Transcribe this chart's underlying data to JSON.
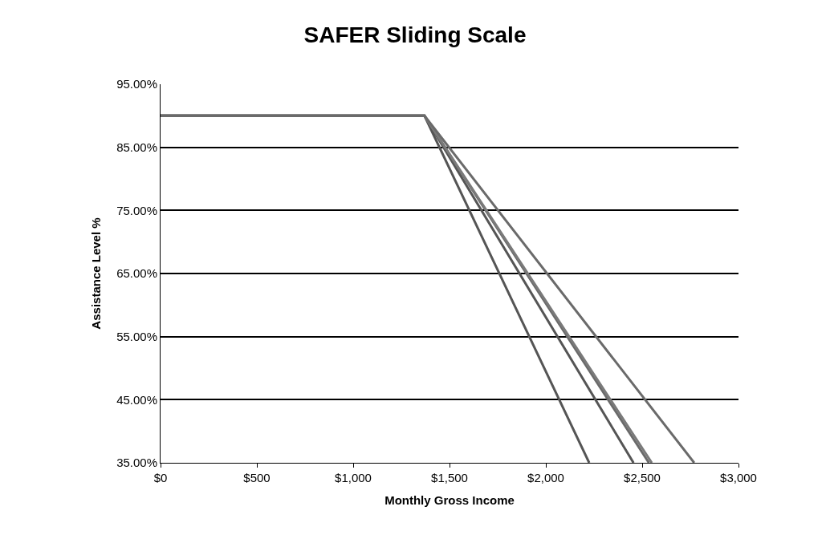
{
  "chart_data": {
    "type": "line",
    "title": "SAFER Sliding Scale",
    "xlabel": "Monthly Gross Income",
    "ylabel": "Assistance Level %",
    "xlim": [
      0,
      3000
    ],
    "xticks": [
      {
        "value": 0,
        "label": "$0"
      },
      {
        "value": 500,
        "label": "$500"
      },
      {
        "value": 1000,
        "label": "$1,000"
      },
      {
        "value": 1500,
        "label": "$1,500"
      },
      {
        "value": 2000,
        "label": "$2,000"
      },
      {
        "value": 2500,
        "label": "$2,500"
      },
      {
        "value": 3000,
        "label": "$3,000"
      }
    ],
    "ylim": [
      35,
      95
    ],
    "yticks": [
      {
        "value": 35,
        "label": "35.00%"
      },
      {
        "value": 45,
        "label": "45.00%"
      },
      {
        "value": 55,
        "label": "55.00%"
      },
      {
        "value": 65,
        "label": "65.00%"
      },
      {
        "value": 75,
        "label": "75.00%"
      },
      {
        "value": 85,
        "label": "85.00%"
      },
      {
        "value": 95,
        "label": "95.00%"
      }
    ],
    "grid": "y",
    "legend": false,
    "series": [
      {
        "color": "#555555",
        "x": [
          0,
          1370,
          2225
        ],
        "values": [
          90,
          90,
          35
        ]
      },
      {
        "color": "#555555",
        "x": [
          0,
          1370,
          2455
        ],
        "values": [
          90,
          90,
          35
        ]
      },
      {
        "color": "#6a6a6a",
        "x": [
          0,
          1370,
          2535
        ],
        "values": [
          90,
          90,
          35
        ]
      },
      {
        "color": "#7a7a7a",
        "x": [
          0,
          1370,
          2550
        ],
        "values": [
          90,
          90,
          35
        ]
      },
      {
        "color": "#6a6a6a",
        "x": [
          0,
          1370,
          2770
        ],
        "values": [
          90,
          90,
          35
        ]
      }
    ]
  }
}
